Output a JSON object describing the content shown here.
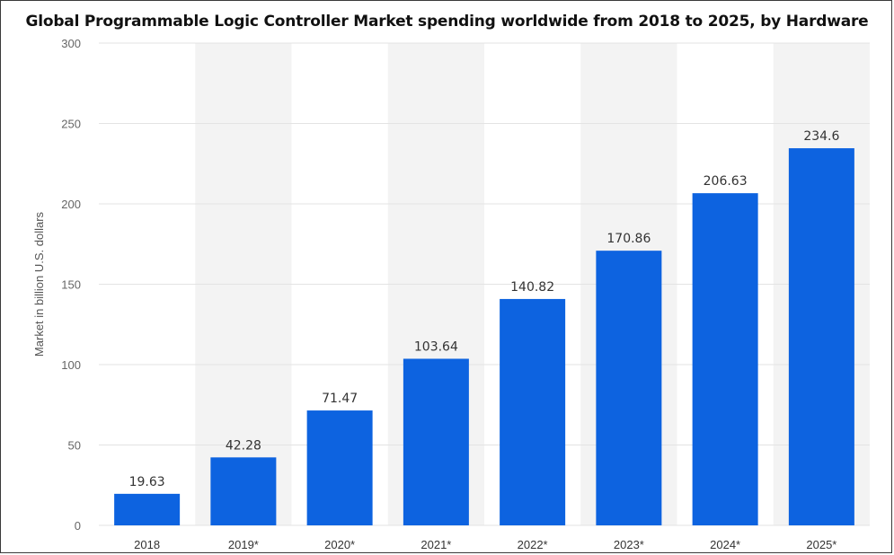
{
  "chart_data": {
    "type": "bar",
    "title": "Global Programmable Logic Controller Market spending worldwide from 2018 to 2025, by Hardware",
    "ylabel": "Market in billion U.S. dollars",
    "xlabel": "",
    "categories": [
      "2018",
      "2019*",
      "2020*",
      "2021*",
      "2022*",
      "2023*",
      "2024*",
      "2025*"
    ],
    "values": [
      19.63,
      42.28,
      71.47,
      103.64,
      140.82,
      170.86,
      206.63,
      234.6
    ],
    "value_labels": [
      "19.63",
      "42.28",
      "71.47",
      "103.64",
      "140.82",
      "170.86",
      "206.63",
      "234.6"
    ],
    "ylim": [
      0,
      300
    ],
    "yticks": [
      0,
      50,
      100,
      150,
      200,
      250,
      300
    ],
    "grid": true,
    "bar_color": "#0d63e0",
    "alt_band_color": "#f3f3f3",
    "grid_color": "#e3e3e3"
  }
}
